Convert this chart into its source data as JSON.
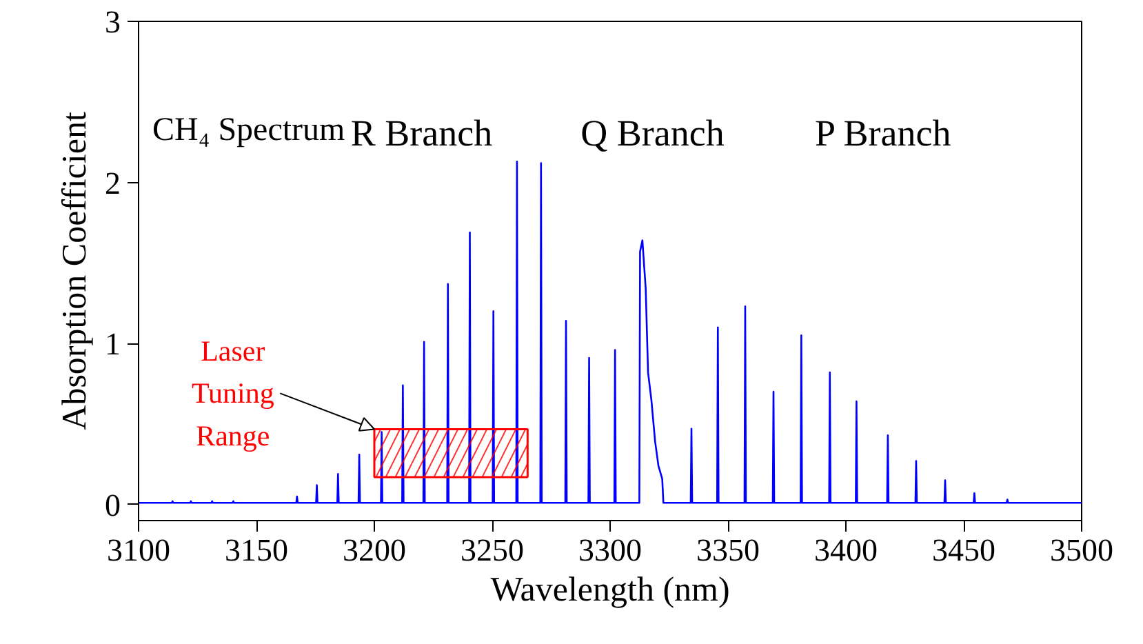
{
  "chart_data": {
    "type": "line",
    "xlabel": "Wavelength (nm)",
    "ylabel": "Absorption Coefficient",
    "x": [
      3100,
      3114.1,
      3114.4,
      3114.7,
      3121.9,
      3122.2,
      3122.5,
      3130.9,
      3131.2,
      3131.5,
      3139.9,
      3140.2,
      3140.5,
      3166.9,
      3167.2,
      3167.5,
      3175.3,
      3175.6,
      3175.9,
      3184.3,
      3184.6,
      3184.9,
      3193.3,
      3193.6,
      3193.9,
      3202.8,
      3203.1,
      3203.4,
      3211.8,
      3212.1,
      3212.4,
      3220.8,
      3221.1,
      3221.4,
      3230.9,
      3231.2,
      3231.5,
      3240.2,
      3240.5,
      3240.8,
      3250.2,
      3250.5,
      3250.8,
      3260.2,
      3260.5,
      3260.8,
      3270.4,
      3270.7,
      3271.0,
      3281.0,
      3281.3,
      3281.6,
      3290.8,
      3291.1,
      3291.4,
      3301.8,
      3302.1,
      3302.4,
      3312.4,
      3312.7,
      3313.7,
      3315.1,
      3316.1,
      3317.5,
      3319.1,
      3320.5,
      3322.1,
      3322.6,
      3334.2,
      3334.5,
      3334.8,
      3345.4,
      3345.7,
      3346.0,
      3357.0,
      3357.3,
      3357.6,
      3369.0,
      3369.3,
      3369.6,
      3380.8,
      3381.1,
      3381.4,
      3392.9,
      3393.2,
      3393.5,
      3404.2,
      3404.5,
      3404.8,
      3417.5,
      3417.8,
      3418.1,
      3429.5,
      3429.8,
      3430.1,
      3441.8,
      3442.1,
      3442.4,
      3454.2,
      3454.5,
      3454.8,
      3468.2,
      3468.5,
      3468.8,
      3500
    ],
    "series": [
      {
        "color": "#0000ff",
        "values": [
          0.01,
          0.01,
          0.02,
          0.01,
          0.01,
          0.02,
          0.01,
          0.01,
          0.02,
          0.01,
          0.01,
          0.02,
          0.01,
          0.01,
          0.05,
          0.01,
          0.01,
          0.12,
          0.01,
          0.01,
          0.19,
          0.01,
          0.01,
          0.31,
          0.01,
          0.01,
          0.45,
          0.01,
          0.01,
          0.74,
          0.01,
          0.01,
          1.01,
          0.01,
          0.01,
          1.37,
          0.01,
          0.01,
          1.69,
          0.01,
          0.01,
          1.2,
          0.01,
          0.01,
          2.13,
          0.01,
          0.01,
          2.12,
          0.01,
          0.01,
          1.14,
          0.01,
          0.01,
          0.91,
          0.01,
          0.01,
          0.96,
          0.01,
          0.01,
          1.57,
          1.64,
          1.34,
          0.82,
          0.65,
          0.39,
          0.24,
          0.16,
          0.01,
          0.01,
          0.47,
          0.01,
          0.01,
          1.1,
          0.01,
          0.01,
          1.23,
          0.01,
          0.01,
          0.7,
          0.01,
          0.01,
          1.05,
          0.01,
          0.01,
          0.82,
          0.01,
          0.01,
          0.64,
          0.01,
          0.01,
          0.43,
          0.01,
          0.01,
          0.27,
          0.01,
          0.01,
          0.15,
          0.01,
          0.01,
          0.07,
          0.01,
          0.01,
          0.03,
          0.01,
          0.01
        ]
      }
    ],
    "xlim": [
      3100,
      3500
    ],
    "xticks": [
      3100,
      3150,
      3200,
      3250,
      3300,
      3350,
      3400,
      3450,
      3500
    ],
    "ylim": [
      -0.1,
      3
    ],
    "yticks": [
      0,
      1,
      2,
      3
    ],
    "grid": false,
    "marker": "none",
    "line_style": "solid",
    "annotations": [
      "CH₄ Spectrum",
      "R Branch",
      "Q Branch",
      "P Branch"
    ],
    "bands": [
      {
        "axis": "x",
        "from": 3200,
        "to": 3265,
        "label": "Laser Tuning Range",
        "color": "#ff0000"
      }
    ]
  }
}
